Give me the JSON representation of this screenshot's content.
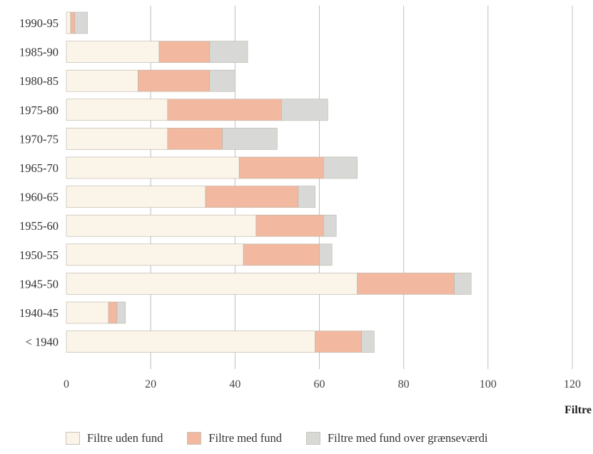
{
  "chart_data": {
    "type": "bar",
    "orientation": "horizontal",
    "stacked": true,
    "categories": [
      "1990-95",
      "1985-90",
      "1980-85",
      "1975-80",
      "1970-75",
      "1965-70",
      "1960-65",
      "1955-60",
      "1950-55",
      "1945-50",
      "1940-45",
      "< 1940"
    ],
    "series": [
      {
        "name": "Filtre uden fund",
        "color": "#fbf4e8",
        "values": [
          1,
          22,
          17,
          24,
          24,
          41,
          33,
          45,
          42,
          69,
          10,
          59
        ]
      },
      {
        "name": "Filtre med fund",
        "color": "#f2b8a0",
        "values": [
          1,
          12,
          17,
          27,
          13,
          20,
          22,
          16,
          18,
          23,
          2,
          11
        ]
      },
      {
        "name": "Filtre med fund over grænseværdi",
        "color": "#d8d9d6",
        "values": [
          3,
          9,
          6,
          11,
          13,
          8,
          4,
          3,
          3,
          4,
          2,
          3
        ]
      }
    ],
    "xlabel": "Filtre",
    "xlim": [
      0,
      120
    ],
    "xticks": [
      0,
      20,
      40,
      60,
      80,
      100,
      120
    ],
    "grid": "vertical",
    "legend_position": "bottom"
  }
}
